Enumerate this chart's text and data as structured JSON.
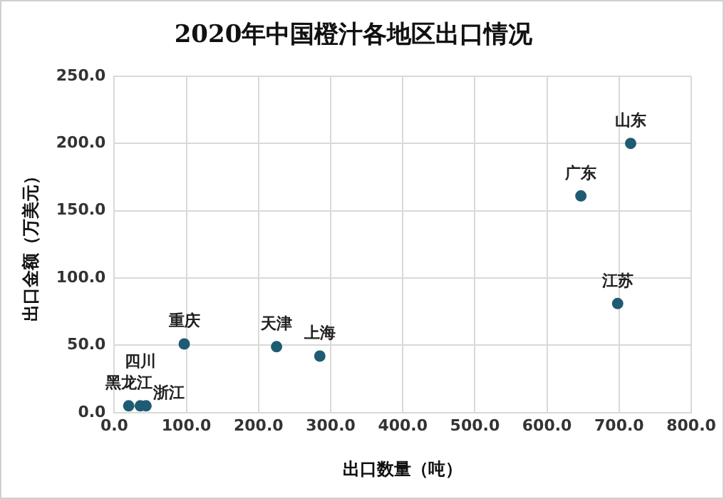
{
  "chart_data": {
    "type": "scatter",
    "title": "2020年中国橙汁各地区出口情况",
    "xlabel": "出口数量（吨）",
    "ylabel": "出口金额（万美元）",
    "x": [
      20,
      36,
      44,
      97,
      225,
      285,
      647,
      716,
      698
    ],
    "values": [
      5,
      5,
      5,
      51,
      49,
      42,
      161,
      200,
      81
    ],
    "color": "#1f5c74",
    "marker": "circle",
    "grid": true,
    "legend": false,
    "xlim": [
      0,
      800
    ],
    "xticks": [
      {
        "value": 0,
        "label": "0.0"
      },
      {
        "value": 100,
        "label": "100.0"
      },
      {
        "value": 200,
        "label": "200.0"
      },
      {
        "value": 300,
        "label": "300.0"
      },
      {
        "value": 400,
        "label": "400.0"
      },
      {
        "value": 500,
        "label": "500.0"
      },
      {
        "value": 600,
        "label": "600.0"
      },
      {
        "value": 700,
        "label": "700.0"
      },
      {
        "value": 800,
        "label": "800.0"
      }
    ],
    "ylim": [
      0,
      250
    ],
    "yticks": [
      {
        "value": 0,
        "label": "0.0"
      },
      {
        "value": 50,
        "label": "50.0"
      },
      {
        "value": 100,
        "label": "100.0"
      },
      {
        "value": 150,
        "label": "150.0"
      },
      {
        "value": 200,
        "label": "200.0"
      },
      {
        "value": 250,
        "label": "250.0"
      }
    ],
    "annotations": [
      {
        "text": "黑龙江",
        "x": 20,
        "y": 5
      },
      {
        "text": "四川",
        "x": 36,
        "y": 5
      },
      {
        "text": "浙江",
        "x": 44,
        "y": 5
      },
      {
        "text": "重庆",
        "x": 97,
        "y": 51
      },
      {
        "text": "天津",
        "x": 225,
        "y": 49
      },
      {
        "text": "上海",
        "x": 285,
        "y": 42
      },
      {
        "text": "广东",
        "x": 647,
        "y": 161
      },
      {
        "text": "山东",
        "x": 716,
        "y": 200
      },
      {
        "text": "江苏",
        "x": 698,
        "y": 81
      }
    ]
  }
}
